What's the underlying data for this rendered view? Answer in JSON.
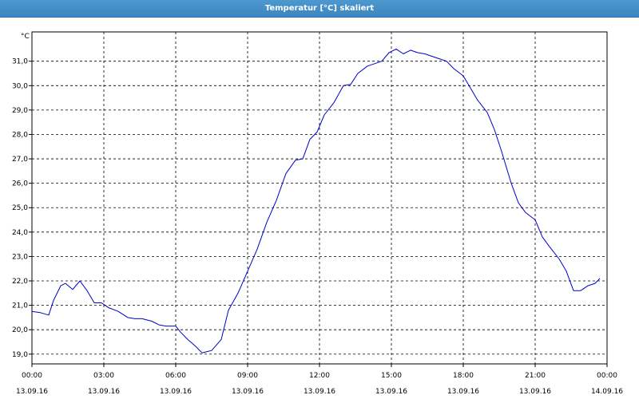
{
  "window": {
    "title": "Temperatur [°C] skaliert"
  },
  "chart_data": {
    "type": "line",
    "title": "Temperatur [°C] skaliert",
    "ylabel": "°C",
    "ylim": [
      18.6,
      32.2
    ],
    "yticks": [
      "19,0",
      "20,0",
      "21,0",
      "22,0",
      "23,0",
      "24,0",
      "25,0",
      "26,0",
      "27,0",
      "28,0",
      "29,0",
      "30,0",
      "31,0"
    ],
    "ytick_values": [
      19,
      20,
      21,
      22,
      23,
      24,
      25,
      26,
      27,
      28,
      29,
      30,
      31
    ],
    "xlim": [
      0,
      24
    ],
    "xticks": [
      {
        "x": 0,
        "time": "00:00",
        "date": "13.09.16"
      },
      {
        "x": 3,
        "time": "03:00",
        "date": "13.09.16"
      },
      {
        "x": 6,
        "time": "06:00",
        "date": "13.09.16"
      },
      {
        "x": 9,
        "time": "09:00",
        "date": "13.09.16"
      },
      {
        "x": 12,
        "time": "12:00",
        "date": "13.09.16"
      },
      {
        "x": 15,
        "time": "15:00",
        "date": "13.09.16"
      },
      {
        "x": 18,
        "time": "18:00",
        "date": "13.09.16"
      },
      {
        "x": 21,
        "time": "21:00",
        "date": "13.09.16"
      },
      {
        "x": 24,
        "time": "00:00",
        "date": "14.09.16"
      }
    ],
    "grid": true,
    "series": [
      {
        "color": "#0000cc",
        "x": [
          0.0,
          0.35,
          0.7,
          0.9,
          1.2,
          1.4,
          1.7,
          2.0,
          2.3,
          2.6,
          2.9,
          3.2,
          3.6,
          4.0,
          4.3,
          4.6,
          5.0,
          5.3,
          5.6,
          6.0,
          6.2,
          6.5,
          6.8,
          7.1,
          7.5,
          7.9,
          8.2,
          8.6,
          9.0,
          9.4,
          9.8,
          10.2,
          10.6,
          11.0,
          11.3,
          11.6,
          11.9,
          12.2,
          12.6,
          13.0,
          13.3,
          13.6,
          14.0,
          14.3,
          14.6,
          14.9,
          15.2,
          15.5,
          15.8,
          16.1,
          16.4,
          16.7,
          17.0,
          17.3,
          17.6,
          18.0,
          18.3,
          18.6,
          19.0,
          19.3,
          19.6,
          20.0,
          20.3,
          20.6,
          21.0,
          21.3,
          21.6,
          22.0,
          22.3,
          22.6,
          22.9,
          23.2,
          23.5,
          23.7
        ],
        "y": [
          20.75,
          20.7,
          20.6,
          21.2,
          21.8,
          21.9,
          21.65,
          22.0,
          21.6,
          21.1,
          21.1,
          20.9,
          20.75,
          20.5,
          20.45,
          20.45,
          20.35,
          20.2,
          20.15,
          20.15,
          19.9,
          19.6,
          19.35,
          19.05,
          19.15,
          19.6,
          20.8,
          21.5,
          22.4,
          23.3,
          24.4,
          25.3,
          26.4,
          26.95,
          27.0,
          27.8,
          28.1,
          28.8,
          29.3,
          30.0,
          30.05,
          30.5,
          30.8,
          30.9,
          31.0,
          31.35,
          31.5,
          31.3,
          31.45,
          31.35,
          31.3,
          31.2,
          31.1,
          31.0,
          30.7,
          30.4,
          29.9,
          29.4,
          28.9,
          28.2,
          27.3,
          26.0,
          25.2,
          24.8,
          24.5,
          23.8,
          23.4,
          22.9,
          22.4,
          21.6,
          21.6,
          21.8,
          21.9,
          22.1
        ]
      }
    ]
  }
}
